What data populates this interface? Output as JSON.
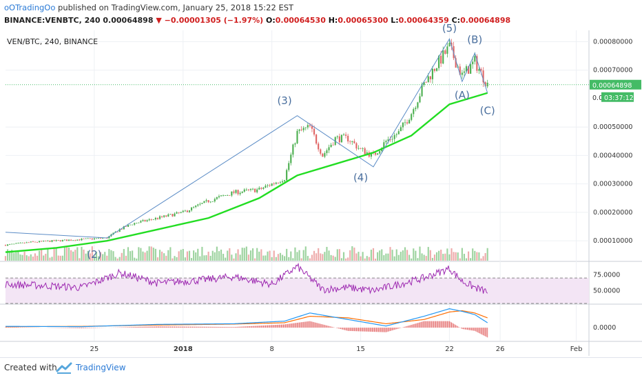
{
  "header": {
    "author": "oOTradingOo",
    "published_text": "published on TradingView.com, January 25, 2018 15:22 EST",
    "symbol_line": "BINANCE:VENBTC, 240",
    "last_price": "0.00064898",
    "change_arrow": "▼",
    "change": "−0.00001305 (−1.97%)",
    "o_label": "O:",
    "o_value": "0.00064530",
    "h_label": "H:",
    "h_value": "0.00065300",
    "l_label": "L:",
    "l_value": "0.00064359",
    "c_label": "C:",
    "c_value": "0.00064898"
  },
  "footer": {
    "created_with": "Created with",
    "brand": "TradingView"
  },
  "chart_data": [
    {
      "type": "candlestick",
      "title": "VEN/BTC, 240, BINANCE",
      "x_tick_labels": [
        "25",
        "2018",
        "8",
        "15",
        "22",
        "26",
        "Feb"
      ],
      "x_tick_dates": [
        "2017-12-25",
        "2018-01-01",
        "2018-01-08",
        "2018-01-15",
        "2018-01-22",
        "2018-01-26",
        "2018-02-01"
      ],
      "xlim": [
        "2017-12-18",
        "2018-02-02"
      ],
      "y_tick_labels": [
        "0.00010000",
        "0.00020000",
        "0.00030000",
        "0.00040000",
        "0.00050000",
        "0.00070000",
        "0.00080000"
      ],
      "ylim": [
        3e-05,
        0.00084
      ],
      "last_price_label": "0.00064898",
      "countdown_label": "03:37:12",
      "countdown_partial_label": "0.0",
      "series": [
        {
          "kind": "close",
          "x": [
            "2017-12-18",
            "2017-12-20",
            "2017-12-22",
            "2017-12-24",
            "2017-12-26",
            "2017-12-27",
            "2017-12-28",
            "2017-12-30",
            "2018-01-01",
            "2018-01-03",
            "2018-01-05",
            "2018-01-07",
            "2018-01-09",
            "2018-01-10",
            "2018-01-11",
            "2018-01-12",
            "2018-01-13",
            "2018-01-14",
            "2018-01-15",
            "2018-01-16",
            "2018-01-17",
            "2018-01-18",
            "2018-01-19",
            "2018-01-20",
            "2018-01-21",
            "2018-01-22",
            "2018-01-23",
            "2018-01-24",
            "2018-01-25"
          ],
          "values": [
            8.5e-05,
            9.5e-05,
            0.0001,
            0.000105,
            0.00011,
            0.00014,
            0.00016,
            0.00018,
            0.0002,
            0.00024,
            0.00027,
            0.00028,
            0.00032,
            0.00048,
            0.0005,
            0.0004,
            0.00046,
            0.00046,
            0.00042,
            0.0004,
            0.00045,
            0.00048,
            0.00055,
            0.00065,
            0.00072,
            0.00078,
            0.00068,
            0.00073,
            0.000649
          ]
        },
        {
          "kind": "moving-average",
          "x": [
            "2017-12-18",
            "2017-12-22",
            "2017-12-26",
            "2017-12-30",
            "2018-01-03",
            "2018-01-07",
            "2018-01-10",
            "2018-01-13",
            "2018-01-16",
            "2018-01-19",
            "2018-01-22",
            "2018-01-25"
          ],
          "values": [
            6e-05,
            7.5e-05,
            0.0001,
            0.00014,
            0.00018,
            0.00025,
            0.00033,
            0.00037,
            0.00041,
            0.00047,
            0.00058,
            0.00062
          ]
        }
      ],
      "wave_labels": [
        {
          "label": "(2)",
          "x": "2017-12-25",
          "y": 4e-05
        },
        {
          "label": "(3)",
          "x": "2018-01-09",
          "y": 0.00058
        },
        {
          "label": "(4)",
          "x": "2018-01-15",
          "y": 0.00031
        },
        {
          "label": "(5)",
          "x": "2018-01-22",
          "y": 0.000835
        },
        {
          "label": "(A)",
          "x": "2018-01-23",
          "y": 0.0006
        },
        {
          "label": "(B)",
          "x": "2018-01-24",
          "y": 0.000795
        },
        {
          "label": "(C)",
          "x": "2018-01-25",
          "y": 0.000545
        }
      ],
      "wave_line": {
        "x": [
          "2017-12-18",
          "2017-12-26",
          "2018-01-10",
          "2018-01-16",
          "2018-01-22",
          "2018-01-23",
          "2018-01-24",
          "2018-01-25"
        ],
        "values": [
          0.00013,
          0.00011,
          0.00054,
          0.00036,
          0.00081,
          0.00066,
          0.00076,
          0.00062
        ]
      },
      "colors": {
        "up": "#4caf50",
        "down": "#e06666",
        "ma": "#22dd22",
        "wave": "#5b8cc6",
        "price_label": "#44bb66"
      }
    },
    {
      "type": "line",
      "title": "",
      "y_tick_labels": [
        "75.0000",
        "50.0000"
      ],
      "ylim": [
        30,
        95
      ],
      "bands": [
        70,
        30
      ],
      "x": [
        "2017-12-18",
        "2017-12-21",
        "2017-12-24",
        "2017-12-27",
        "2017-12-30",
        "2018-01-02",
        "2018-01-05",
        "2018-01-08",
        "2018-01-10",
        "2018-01-12",
        "2018-01-14",
        "2018-01-16",
        "2018-01-18",
        "2018-01-20",
        "2018-01-22",
        "2018-01-23",
        "2018-01-24",
        "2018-01-25"
      ],
      "values": [
        60,
        58,
        55,
        78,
        62,
        66,
        72,
        60,
        88,
        52,
        55,
        50,
        60,
        70,
        85,
        65,
        55,
        48
      ],
      "colors": {
        "line": "#9c27b0",
        "fill": "#f3e5f5"
      }
    },
    {
      "type": "line",
      "title": "",
      "y_tick_labels": [
        "0.0000"
      ],
      "ylim": [
        -4e-05,
        7e-05
      ],
      "x": [
        "2017-12-18",
        "2017-12-24",
        "2017-12-30",
        "2018-01-05",
        "2018-01-09",
        "2018-01-11",
        "2018-01-14",
        "2018-01-17",
        "2018-01-20",
        "2018-01-22",
        "2018-01-23",
        "2018-01-24",
        "2018-01-25"
      ],
      "series": [
        {
          "values": [
            4e-06,
            3e-06,
            1e-05,
            1.2e-05,
            2e-05,
            4.5e-05,
            2.5e-05,
            5e-06,
            3.5e-05,
            5.8e-05,
            5e-05,
            4e-05,
            1.5e-05
          ]
        },
        {
          "values": [
            3e-06,
            4e-06,
            8e-06,
            1.1e-05,
            1.5e-05,
            3.5e-05,
            3e-05,
            1.2e-05,
            2.5e-05,
            4.8e-05,
            5.2e-05,
            4.5e-05,
            3e-05
          ]
        }
      ],
      "colors": {
        "macd": "#2196f3",
        "signal": "#ff6d00",
        "hist_down": "#e57373"
      }
    }
  ]
}
